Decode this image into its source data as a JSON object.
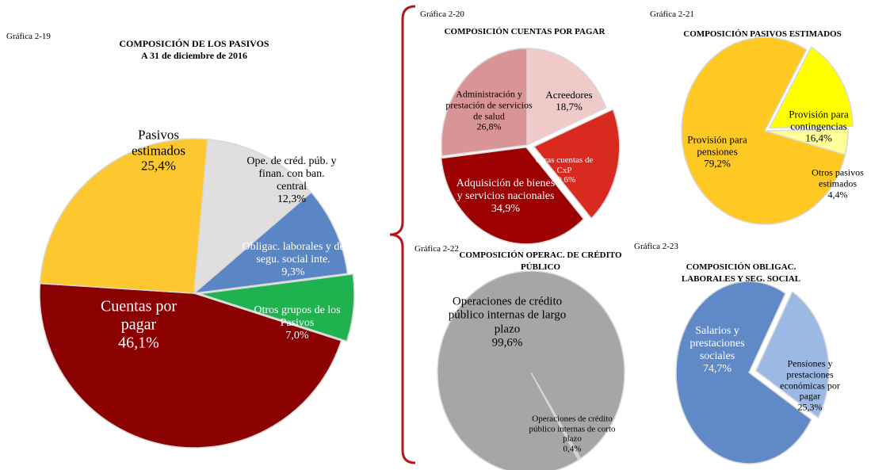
{
  "chart_data": [
    {
      "type": "pie",
      "label": "Gráfica 2-19",
      "title": "COMPOSICIÓN DE LOS PASIVOS",
      "subtitle": "A 31 de diciembre de 2016",
      "categories": [
        "Ope. de créd. púb. y finan. con ban. central",
        "Obligac. laborales y de segu. social inte.",
        "Otros grupos de los Pasivos",
        "Cuentas por pagar",
        "Pasivos estimados"
      ],
      "values": [
        12.3,
        9.3,
        7.0,
        46.1,
        25.4
      ],
      "value_labels": [
        "12,3%",
        "9,3%",
        "7,0%",
        "46,1%",
        "25,4%"
      ],
      "colors": [
        "#e0dede",
        "#5b86c5",
        "#1fb24f",
        "#8b0000",
        "#fdc82f"
      ]
    },
    {
      "type": "pie",
      "label": "Gráfica 2-20",
      "title": "COMPOSICIÓN CUENTAS POR PAGAR",
      "categories": [
        "Acreedores",
        "Otras cuentas de CxP",
        "Adquisición de bienes y servicios nacionales",
        "Administración y prestación de servicios de salud"
      ],
      "values": [
        18.7,
        19.6,
        34.9,
        26.8
      ],
      "value_labels": [
        "18,7%",
        "19,6%",
        "34,9%",
        "26,8%"
      ],
      "colors": [
        "#f0c9c9",
        "#d92a20",
        "#9c0000",
        "#d99495"
      ]
    },
    {
      "type": "pie",
      "label": "Gráfica 2-21",
      "title": "COMPOSICIÓN PASIVOS ESTIMADOS",
      "categories": [
        "Provisión para contingencias",
        "Otros pasivos estimados",
        "Provisión para pensiones"
      ],
      "values": [
        16.4,
        4.4,
        79.2
      ],
      "value_labels": [
        "16,4%",
        "4,4%",
        "79,2%"
      ],
      "colors": [
        "#ffff00",
        "#ffff99",
        "#ffc822"
      ]
    },
    {
      "type": "pie",
      "label": "Gráfica 2-22",
      "title": "COMPOSICIÓN OPERAC. DE CRÉDITO PÚBLICO",
      "categories": [
        "Operaciones de crédito público internas de corto plazo",
        "Operaciones de crédito público internas de largo plazo"
      ],
      "values": [
        0.4,
        99.6
      ],
      "value_labels": [
        "0,4%",
        "99,6%"
      ],
      "colors": [
        "#c8c8c8",
        "#a6a6a6"
      ]
    },
    {
      "type": "pie",
      "label": "Gráfica 2-23",
      "title": "COMPOSICIÓN OBLIGAC. LABORALES Y SEG. SOCIAL",
      "categories": [
        "Pensiones y prestaciones económicas por pagar",
        "Salarios y prestaciones sociales"
      ],
      "values": [
        25.3,
        74.7
      ],
      "value_labels": [
        "25,3%",
        "74,7%"
      ],
      "colors": [
        "#9bb9e2",
        "#5f8ac7"
      ]
    }
  ]
}
